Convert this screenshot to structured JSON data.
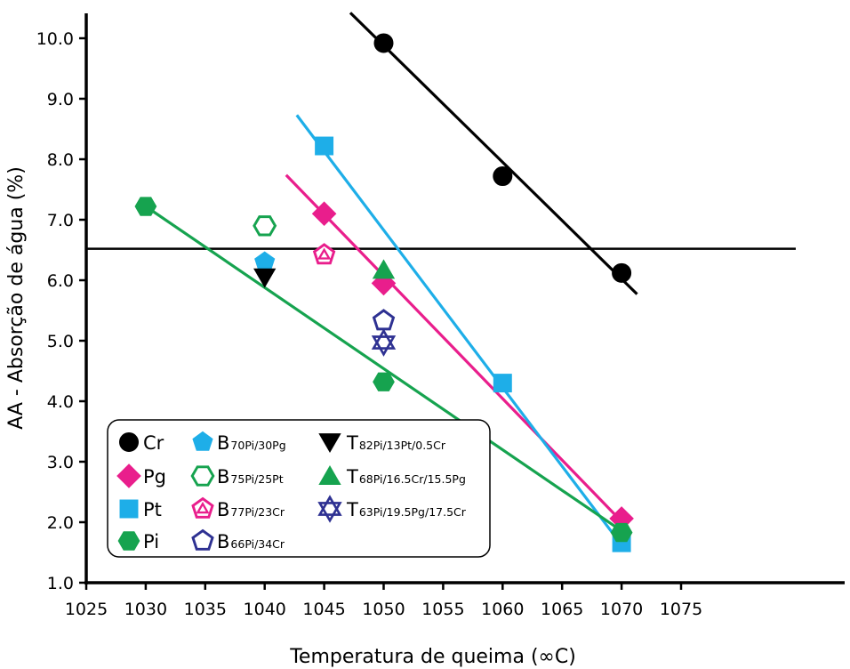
{
  "chart_data": {
    "type": "scatter",
    "title": "",
    "xlabel": "Temperatura de queima (∞C)",
    "ylabel": "AA - Absorção de água (%)",
    "xlim": [
      1025,
      1075
    ],
    "ylim": [
      1.0,
      10.5
    ],
    "x_ticks": [
      "1025",
      "1030",
      "1035",
      "1040",
      "1045",
      "1050",
      "1055",
      "1060",
      "1065",
      "1070",
      "1075"
    ],
    "y_ticks": [
      "1.0",
      "2.0",
      "3.0",
      "4.0",
      "5.0",
      "6.0",
      "7.0",
      "8.0",
      "9.0",
      "10.0"
    ],
    "grid": false,
    "legend_position": "bottom-left",
    "reference_line_y": 6.52,
    "series": [
      {
        "name": "Cr",
        "label_main": "Cr",
        "label_sub": "",
        "marker": "circle",
        "color": "#000000",
        "filled": true,
        "x": [
          1050,
          1060,
          1070
        ],
        "y": [
          9.92,
          7.72,
          6.12
        ],
        "fit": {
          "x": [
            1047.2,
            1071.3
          ],
          "y": [
            10.42,
            5.77
          ]
        }
      },
      {
        "name": "Pg",
        "label_main": "Pg",
        "label_sub": "",
        "marker": "diamond",
        "color": "#e91e8c",
        "filled": true,
        "x": [
          1045,
          1050,
          1070
        ],
        "y": [
          7.1,
          5.95,
          2.06
        ],
        "fit": {
          "x": [
            1041.8,
            1070.4
          ],
          "y": [
            7.74,
            1.93
          ]
        }
      },
      {
        "name": "Pt",
        "label_main": "Pt",
        "label_sub": "",
        "marker": "square",
        "color": "#1eaee8",
        "filled": true,
        "x": [
          1045,
          1060,
          1070
        ],
        "y": [
          8.22,
          4.3,
          1.66
        ],
        "fit": {
          "x": [
            1042.7,
            1070.2
          ],
          "y": [
            8.73,
            1.57
          ]
        }
      },
      {
        "name": "Pi",
        "label_main": "Pi",
        "label_sub": "",
        "marker": "hexagon",
        "color": "#16a34f",
        "filled": true,
        "x": [
          1030,
          1050,
          1070
        ],
        "y": [
          7.22,
          4.32,
          1.83
        ],
        "fit": {
          "x": [
            1030,
            1070.2
          ],
          "y": [
            7.22,
            1.83
          ]
        }
      },
      {
        "name": "B70Pi/30Pg",
        "label_main": "B",
        "label_sub": "70Pi/30Pg",
        "marker": "pentagon",
        "color": "#1eaee8",
        "filled": true,
        "x": [
          1040
        ],
        "y": [
          6.3
        ]
      },
      {
        "name": "B75Pi/25Pt",
        "label_main": "B",
        "label_sub": "75Pi/25Pt",
        "marker": "hexagon",
        "color": "#16a34f",
        "filled": false,
        "x": [
          1040
        ],
        "y": [
          6.9
        ]
      },
      {
        "name": "B77Pi/23Cr",
        "label_main": "B",
        "label_sub": "77Pi/23Cr",
        "marker": "pentagon-tri",
        "color": "#e91e8c",
        "filled": false,
        "x": [
          1045
        ],
        "y": [
          6.42
        ]
      },
      {
        "name": "B66Pi/34Cr",
        "label_main": "B",
        "label_sub": "66Pi/34Cr",
        "marker": "pentagon",
        "color": "#2e3192",
        "filled": false,
        "x": [
          1050
        ],
        "y": [
          5.33
        ]
      },
      {
        "name": "T82Pi/13Pt/0.5Cr",
        "label_main": "T",
        "label_sub": "82Pi/13Pt/0.5Cr",
        "marker": "triangle-down",
        "color": "#000000",
        "filled": true,
        "x": [
          1040
        ],
        "y": [
          6.05
        ]
      },
      {
        "name": "T68Pi/16.5Cr/15.5Pg",
        "label_main": "T",
        "label_sub": "68Pi/16.5Cr/15.5Pg",
        "marker": "triangle-up",
        "color": "#16a34f",
        "filled": true,
        "x": [
          1050
        ],
        "y": [
          6.17
        ]
      },
      {
        "name": "T63Pi/19.5Pg/17.5Cr",
        "label_main": "T",
        "label_sub": "63Pi/19.5Pg/17.5Cr",
        "marker": "star6",
        "color": "#2e3192",
        "filled": false,
        "x": [
          1050
        ],
        "y": [
          4.97
        ]
      }
    ]
  }
}
